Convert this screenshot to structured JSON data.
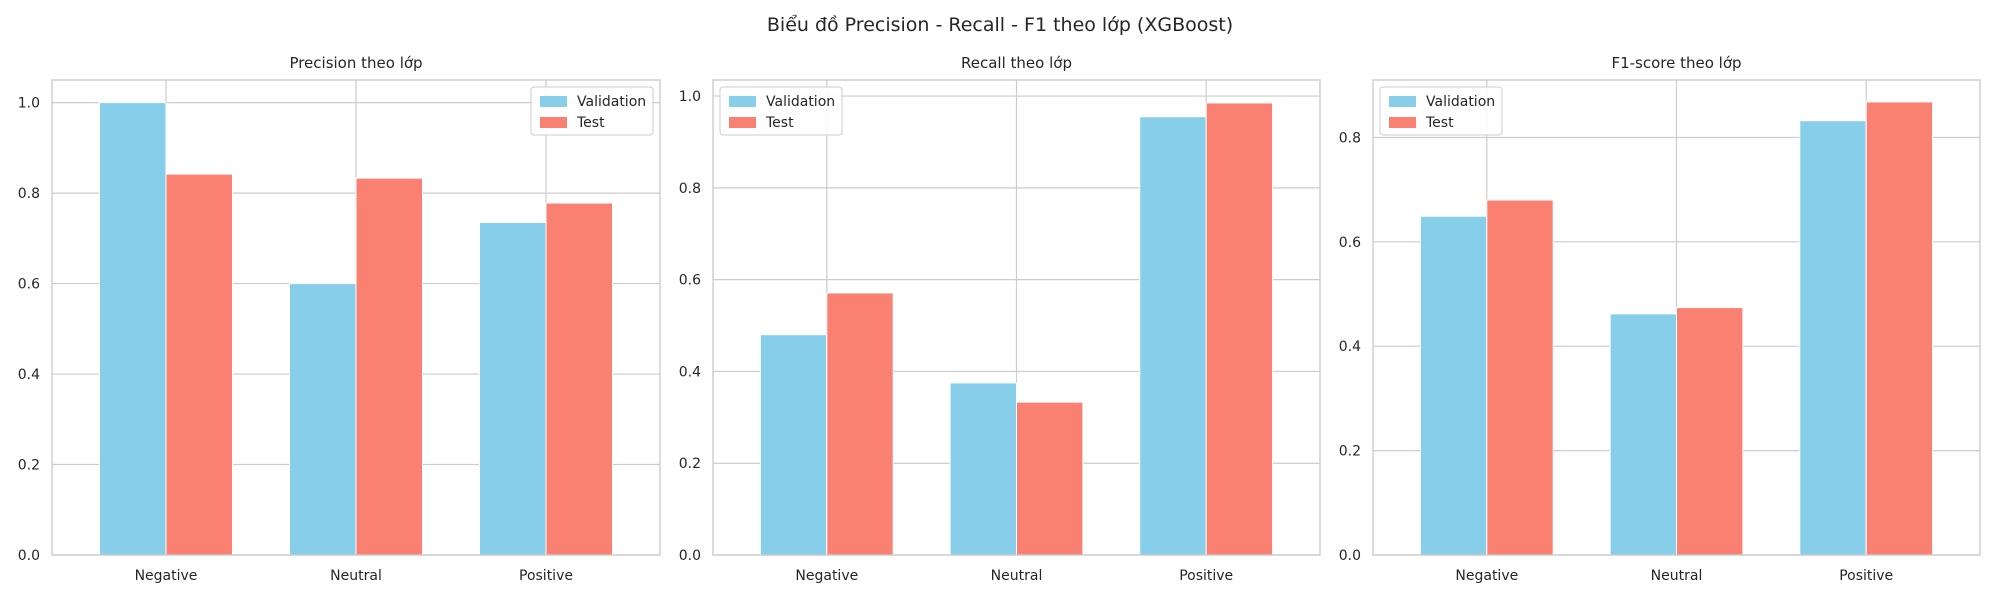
{
  "figure": {
    "title": "Biểu đồ Precision - Recall - F1 theo lớp (XGBoost)",
    "colors": {
      "validation": "#87CEEB",
      "test": "#FA8072"
    }
  },
  "chart_data": [
    {
      "type": "bar",
      "title": "Precision theo lớp",
      "categories": [
        "Negative",
        "Neutral",
        "Positive"
      ],
      "series": [
        {
          "name": "Validation",
          "values": [
            1.0,
            0.6,
            0.735
          ]
        },
        {
          "name": "Test",
          "values": [
            0.842,
            0.833,
            0.778
          ]
        }
      ],
      "xlabel": "",
      "ylabel": "",
      "ylim": [
        0,
        1.05
      ],
      "yticks": [
        0.0,
        0.2,
        0.4,
        0.6,
        0.8,
        1.0
      ],
      "grid": true,
      "legend": "upper right"
    },
    {
      "type": "bar",
      "title": "Recall theo lớp",
      "categories": [
        "Negative",
        "Neutral",
        "Positive"
      ],
      "series": [
        {
          "name": "Validation",
          "values": [
            0.48,
            0.375,
            0.955
          ]
        },
        {
          "name": "Test",
          "values": [
            0.571,
            0.333,
            0.985
          ]
        }
      ],
      "xlabel": "",
      "ylabel": "",
      "ylim": [
        0,
        1.035
      ],
      "yticks": [
        0.0,
        0.2,
        0.4,
        0.6,
        0.8,
        1.0
      ],
      "grid": true,
      "legend": "upper left"
    },
    {
      "type": "bar",
      "title": "F1-score theo lớp",
      "categories": [
        "Negative",
        "Neutral",
        "Positive"
      ],
      "series": [
        {
          "name": "Validation",
          "values": [
            0.649,
            0.462,
            0.832
          ]
        },
        {
          "name": "Test",
          "values": [
            0.68,
            0.474,
            0.868
          ]
        }
      ],
      "xlabel": "",
      "ylabel": "",
      "ylim": [
        0,
        0.91
      ],
      "yticks": [
        0.0,
        0.2,
        0.4,
        0.6,
        0.8
      ],
      "grid": true,
      "legend": "upper left"
    }
  ]
}
